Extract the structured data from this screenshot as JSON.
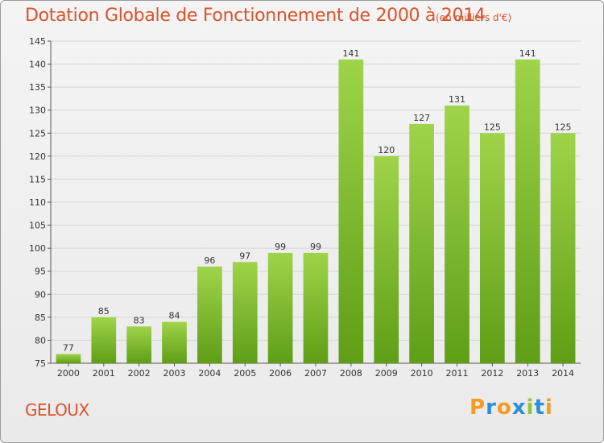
{
  "chart_data": {
    "type": "bar",
    "title": "Dotation Globale de Fonctionnement de 2000 à 2014",
    "subtitle": "(en milliers d'€)",
    "categories": [
      "2000",
      "2001",
      "2002",
      "2003",
      "2004",
      "2005",
      "2006",
      "2007",
      "2008",
      "2009",
      "2010",
      "2011",
      "2012",
      "2013",
      "2014"
    ],
    "values": [
      77,
      85,
      83,
      84,
      96,
      97,
      99,
      99,
      141,
      120,
      127,
      131,
      125,
      141,
      125
    ],
    "ylim": [
      75,
      145
    ],
    "yticks": [
      75,
      80,
      85,
      90,
      95,
      100,
      105,
      110,
      115,
      120,
      125,
      130,
      135,
      140,
      145
    ],
    "grid": true,
    "bar_color": "#7fbf2a"
  },
  "commune": "GELOUX",
  "logo": {
    "text": "Proxiti",
    "letters": [
      {
        "ch": "P",
        "color": "#f39c1f"
      },
      {
        "ch": "r",
        "color": "#2a8fd6"
      },
      {
        "ch": "o",
        "color": "#f39c1f"
      },
      {
        "ch": "x",
        "color": "#2a8fd6"
      },
      {
        "ch": "i",
        "color": "#8cc63f"
      },
      {
        "ch": "t",
        "color": "#2a8fd6"
      },
      {
        "ch": "i",
        "color": "#f39c1f"
      }
    ]
  }
}
